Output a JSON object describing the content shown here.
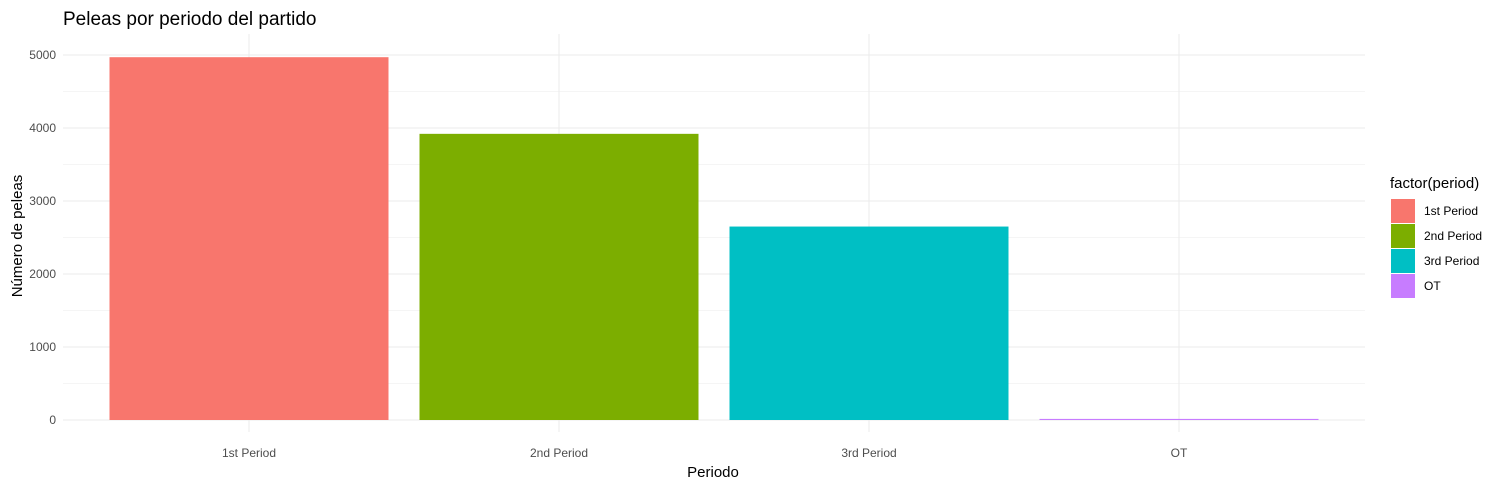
{
  "chart_data": {
    "type": "bar",
    "title": "Peleas por periodo del partido",
    "xlabel": "Periodo",
    "ylabel": "Número de peleas",
    "categories": [
      "1st Period",
      "2nd Period",
      "3rd Period",
      "OT"
    ],
    "values": [
      4970,
      3920,
      2650,
      15
    ],
    "colors": [
      "#F8766D",
      "#7CAE00",
      "#00BFC4",
      "#C77CFF"
    ],
    "ylim": [
      0,
      5000
    ],
    "yticks": [
      0,
      1000,
      2000,
      3000,
      4000,
      5000
    ],
    "grid": true,
    "legend": {
      "title": "factor(period)",
      "position": "right",
      "entries": [
        "1st Period",
        "2nd Period",
        "3rd Period",
        "OT"
      ]
    }
  }
}
